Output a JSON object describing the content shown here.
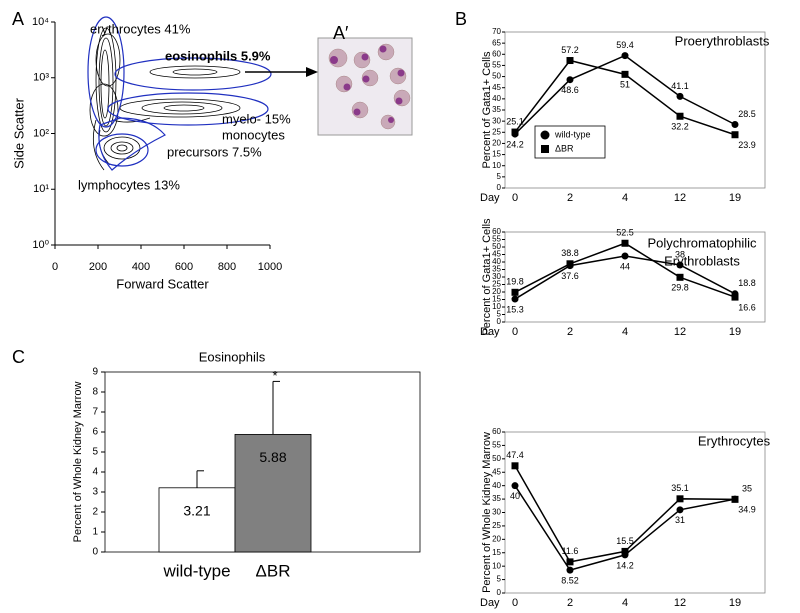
{
  "chart_data": [
    {
      "type": "contour",
      "panel": "A",
      "inset_label": "A′",
      "xlabel": "Forward Scatter",
      "ylabel": "Side Scatter",
      "xlim": [
        0,
        1000
      ],
      "xticks": [
        0,
        200,
        400,
        600,
        800,
        1000
      ],
      "ylim": [
        1,
        10000
      ],
      "log_y": true,
      "yticks": [
        {
          "value": 1,
          "label": "10⁰"
        },
        {
          "value": 10,
          "label": "10¹"
        },
        {
          "value": 100,
          "label": "10²"
        },
        {
          "value": 1000,
          "label": "10³"
        },
        {
          "value": 10000,
          "label": "10⁴"
        }
      ],
      "annotations": [
        "erythrocytes 41%",
        "eosinophils 5.9%",
        "myelo- 15%",
        "monocytes",
        "precursors 7.5%",
        "lymphocytes 13%"
      ]
    },
    {
      "type": "line",
      "panel": "B",
      "title": "Proerythroblasts",
      "ylabel": "Percent of Gata1+ Cells",
      "xlabel": "Day",
      "categories": [
        "0",
        "2",
        "4",
        "12",
        "19"
      ],
      "ylim": [
        0,
        70
      ],
      "yticks": [
        0,
        5,
        10,
        15,
        20,
        25,
        30,
        35,
        40,
        45,
        50,
        55,
        60,
        65,
        70
      ],
      "legend": "lower-left",
      "series": [
        {
          "name": "wild-type",
          "marker": "circle",
          "color": "#000000",
          "values": [
            24.2,
            48.6,
            59.4,
            41.1,
            28.5
          ]
        },
        {
          "name": "ΔBR",
          "marker": "square",
          "color": "#000000",
          "values": [
            25.1,
            57.2,
            51,
            32.2,
            23.9
          ]
        }
      ]
    },
    {
      "type": "line",
      "title": [
        "Polychromatophilic",
        "Erythroblasts"
      ],
      "ylabel": "Percent of Gata1+ Cells",
      "xlabel": "Day",
      "categories": [
        "0",
        "2",
        "4",
        "12",
        "19"
      ],
      "ylim": [
        0,
        60
      ],
      "yticks": [
        0,
        5,
        10,
        15,
        20,
        25,
        30,
        35,
        40,
        45,
        50,
        55,
        60
      ],
      "series": [
        {
          "name": "wild-type",
          "marker": "circle",
          "color": "#000000",
          "values": [
            15.3,
            37.6,
            44,
            38,
            18.8
          ]
        },
        {
          "name": "ΔBR",
          "marker": "square",
          "color": "#000000",
          "values": [
            19.8,
            38.8,
            52.5,
            29.8,
            16.6
          ]
        }
      ]
    },
    {
      "type": "line",
      "title": "Erythrocytes",
      "ylabel": "Percent of Whole Kidney Marrow",
      "xlabel": "Day",
      "categories": [
        "0",
        "2",
        "4",
        "12",
        "19"
      ],
      "ylim": [
        0,
        60
      ],
      "yticks": [
        0,
        5,
        10,
        15,
        20,
        25,
        30,
        35,
        40,
        45,
        50,
        55,
        60
      ],
      "series": [
        {
          "name": "wild-type",
          "marker": "circle",
          "color": "#000000",
          "values": [
            40,
            8.52,
            14.2,
            31,
            35
          ]
        },
        {
          "name": "ΔBR",
          "marker": "square",
          "color": "#000000",
          "values": [
            47.4,
            11.6,
            15.5,
            35.1,
            34.9
          ]
        }
      ]
    },
    {
      "type": "bar",
      "panel": "C",
      "title": "Eosinophils",
      "ylabel": "Percent of Whole Kidney Marrow",
      "categories": [
        "wild-type",
        "ΔBR"
      ],
      "values": [
        3.21,
        5.88
      ],
      "errors": [
        0.85,
        2.65
      ],
      "colors": [
        "#ffffff",
        "#808080"
      ],
      "annotation": "*",
      "ylim": [
        0,
        9
      ],
      "yticks": [
        0,
        1,
        2,
        3,
        4,
        5,
        6,
        7,
        8,
        9
      ]
    }
  ]
}
